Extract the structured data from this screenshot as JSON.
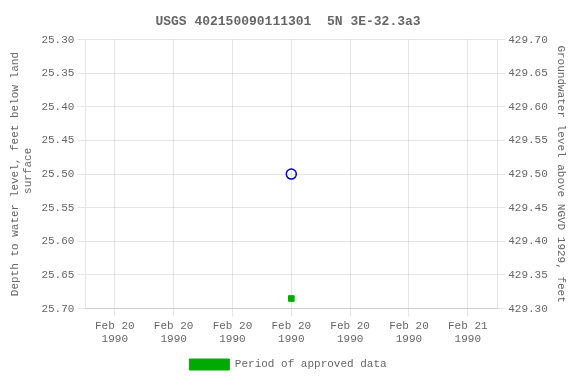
{
  "chart_data": {
    "type": "scatter",
    "title": "USGS 402150090111301  5N 3E-32.3a3",
    "ylabel": "Depth to water level, feet below land\n surface",
    "y2label": "Groundwater level above NGVD 1929, feet",
    "series": [
      {
        "color": "#0000cc",
        "marker": "open_circle",
        "x": [
          3.0
        ],
        "values": [
          25.5
        ]
      },
      {
        "name": "Period of approved data",
        "color": "#00aa00",
        "marker": "square",
        "x": [
          3.0
        ],
        "values": [
          25.685
        ]
      }
    ],
    "xlim": [
      -0.5,
      6.5
    ],
    "xticks": [
      {
        "value": 0,
        "label": "Feb 20\n1990"
      },
      {
        "value": 1,
        "label": "Feb 20\n1990"
      },
      {
        "value": 2,
        "label": "Feb 20\n1990"
      },
      {
        "value": 3,
        "label": "Feb 20\n1990"
      },
      {
        "value": 4,
        "label": "Feb 20\n1990"
      },
      {
        "value": 5,
        "label": "Feb 20\n1990"
      },
      {
        "value": 6,
        "label": "Feb 21\n1990"
      }
    ],
    "ylim": [
      25.7,
      25.3
    ],
    "yticks": [
      {
        "value": 25.3,
        "label": "25.30"
      },
      25.35,
      {
        "value": 25.4,
        "label": "25.40"
      },
      25.45,
      {
        "value": 25.5,
        "label": "25.50"
      },
      25.55,
      {
        "value": 25.6,
        "label": "25.60"
      },
      25.65,
      {
        "value": 25.7,
        "label": "25.70"
      }
    ],
    "y2lim": [
      429.3,
      429.7
    ],
    "y2ticks": [
      {
        "value": 429.7,
        "label": "429.70"
      },
      429.65,
      {
        "value": 429.6,
        "label": "429.60"
      },
      429.55,
      {
        "value": 429.5,
        "label": "429.50"
      },
      429.45,
      {
        "value": 429.4,
        "label": "429.40"
      },
      429.35,
      {
        "value": 429.3,
        "label": "429.30"
      }
    ],
    "grid": true,
    "legend": "bottom"
  }
}
